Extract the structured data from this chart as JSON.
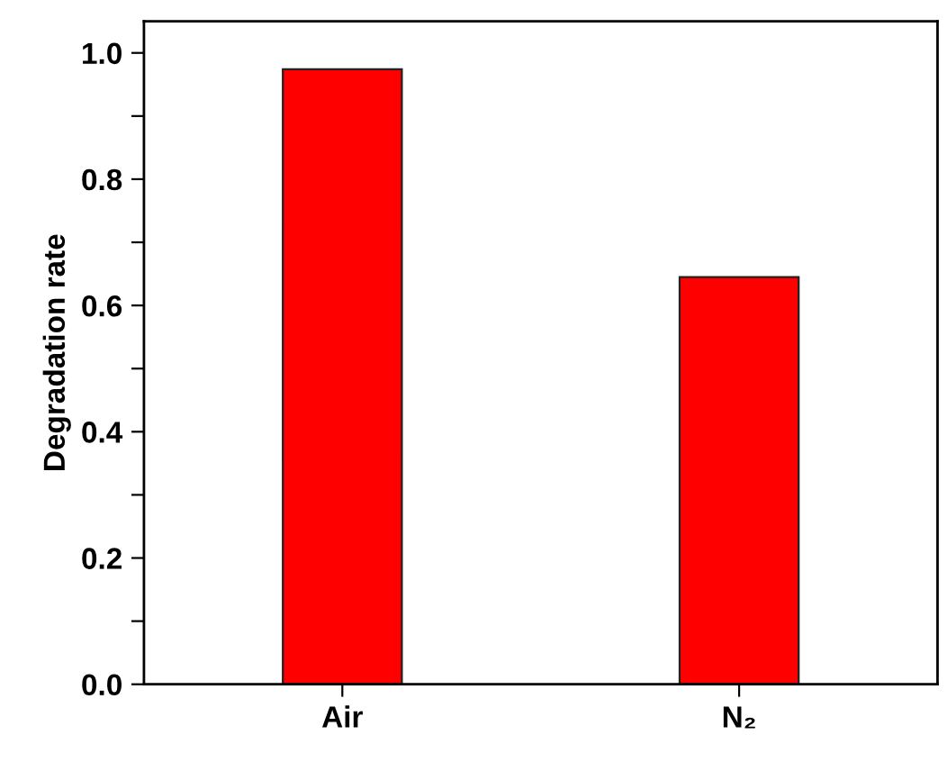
{
  "chart_data": {
    "type": "bar",
    "ylabel": "Degradation rate",
    "categories": [
      "Air",
      "N₂"
    ],
    "values": [
      0.974,
      0.645
    ],
    "color": "#ff0000",
    "ylim": [
      0,
      1.05
    ],
    "yticks": [
      {
        "value": 0,
        "label": "0.0"
      },
      {
        "value": 0.1,
        "label": null
      },
      {
        "value": 0.2,
        "label": "0.2"
      },
      {
        "value": 0.3,
        "label": null
      },
      {
        "value": 0.4,
        "label": "0.4"
      },
      {
        "value": 0.5,
        "label": null
      },
      {
        "value": 0.6,
        "label": "0.6"
      },
      {
        "value": 0.7,
        "label": null
      },
      {
        "value": 0.8,
        "label": "0.8"
      },
      {
        "value": 0.9,
        "label": null
      },
      {
        "value": 1.0,
        "label": "1.0"
      }
    ],
    "grid": false
  }
}
